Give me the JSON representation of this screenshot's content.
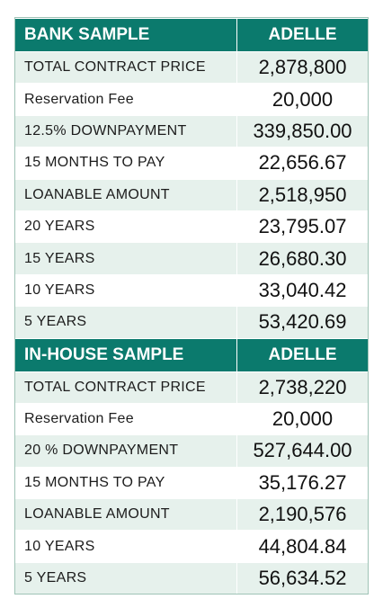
{
  "bank": {
    "header_label": "BANK SAMPLE",
    "header_value": "ADELLE",
    "rows": [
      {
        "label": "TOTAL CONTRACT PRICE",
        "value": "2,878,800"
      },
      {
        "label": "Reservation Fee",
        "value": "20,000"
      },
      {
        "label": "12.5% DOWNPAYMENT",
        "value": "339,850.00"
      },
      {
        "label": "15 MONTHS TO PAY",
        "value": "22,656.67"
      },
      {
        "label": "LOANABLE AMOUNT",
        "value": "2,518,950"
      },
      {
        "label": "20 YEARS",
        "value": "23,795.07"
      },
      {
        "label": "15 YEARS",
        "value": "26,680.30"
      },
      {
        "label": "10 YEARS",
        "value": "33,040.42"
      },
      {
        "label": "5 YEARS",
        "value": "53,420.69"
      }
    ]
  },
  "inhouse": {
    "header_label": "IN-HOUSE SAMPLE",
    "header_value": "ADELLE",
    "rows": [
      {
        "label": "TOTAL CONTRACT PRICE",
        "value": "2,738,220"
      },
      {
        "label": "Reservation Fee",
        "value": "20,000"
      },
      {
        "label": "20 % DOWNPAYMENT",
        "value": "527,644.00"
      },
      {
        "label": "15 MONTHS TO PAY",
        "value": "35,176.27"
      },
      {
        "label": "LOANABLE AMOUNT",
        "value": "2,190,576"
      },
      {
        "label": "10 YEARS",
        "value": "44,804.84"
      },
      {
        "label": "5 YEARS",
        "value": "56,634.52"
      }
    ]
  },
  "colors": {
    "header_bg": "#0b7a6d",
    "band_bg": "#e6f1ec"
  }
}
